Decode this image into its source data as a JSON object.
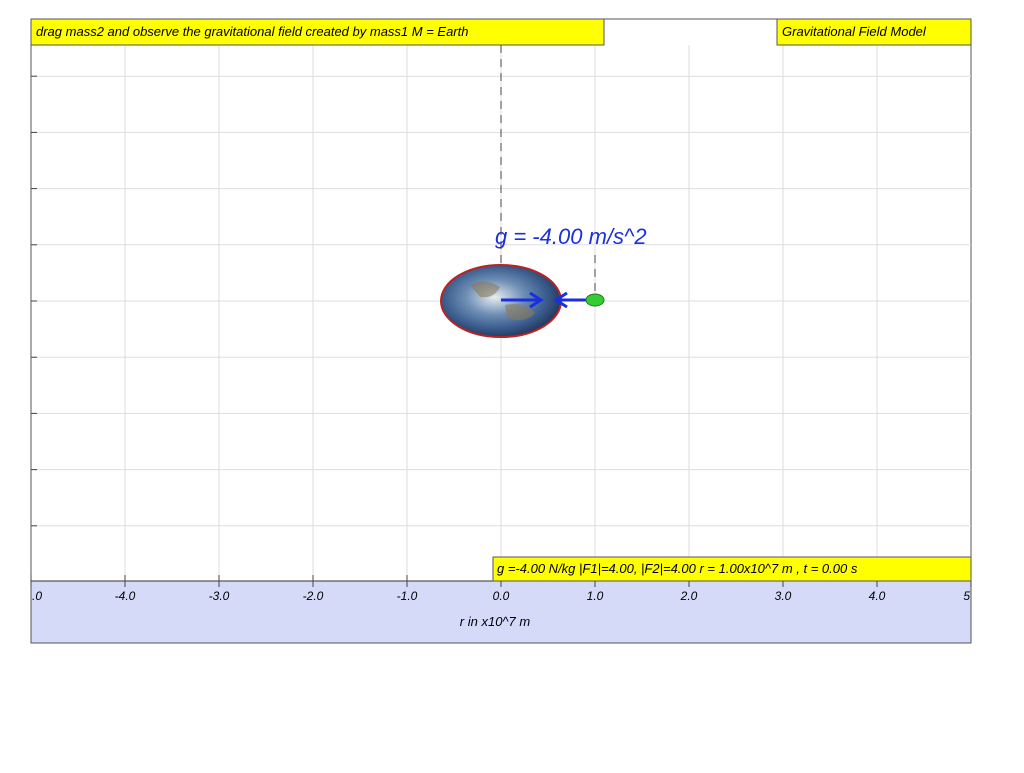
{
  "header": {
    "instruction": "drag mass2 and observe the gravitational field created by mass1 M = Earth",
    "title": "Gravitational Field Model"
  },
  "field_label": "g = -4.00 m/s^2",
  "status": "g =-4.00 N/kg |F1|=4.00, |F2|=4.00 r = 1.00x10^7 m , t = 0.00 s",
  "axis": {
    "label": "r in x10^7 m",
    "ticks": [
      ".0",
      "-4.0",
      "-3.0",
      "-2.0",
      "-1.0",
      "0.0",
      "1.0",
      "2.0",
      "3.0",
      "4.0",
      "5"
    ]
  }
}
